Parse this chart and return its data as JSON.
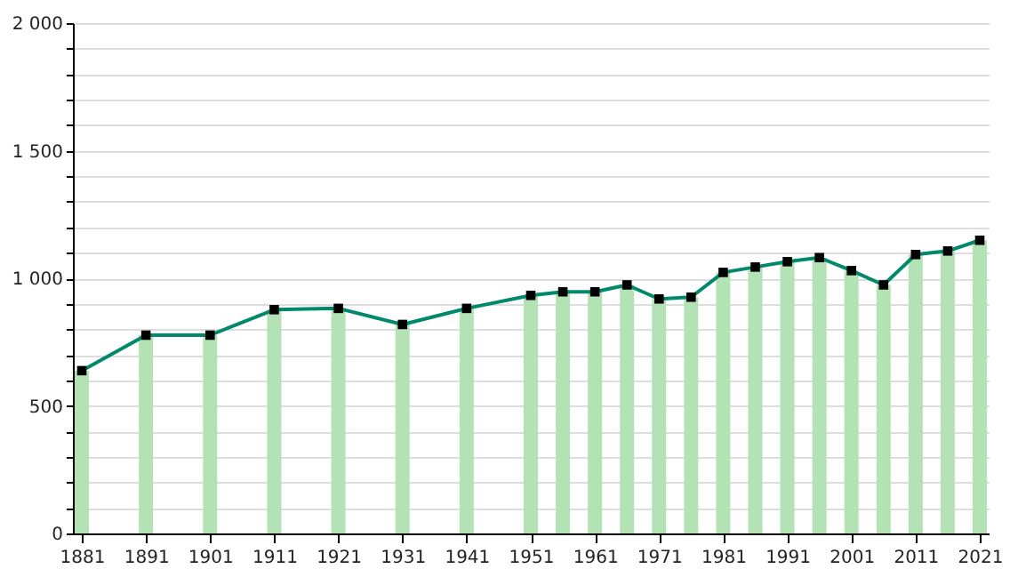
{
  "chart_data": {
    "type": "bar",
    "x": [
      1881,
      1891,
      1901,
      1911,
      1921,
      1931,
      1941,
      1951,
      1956,
      1961,
      1966,
      1971,
      1976,
      1981,
      1986,
      1991,
      1996,
      2001,
      2006,
      2011,
      2016,
      2021
    ],
    "series": [
      {
        "color": "#b3e3b5",
        "values": [
          638,
          777,
          777,
          877,
          882,
          819,
          882,
          933,
          947,
          947,
          974,
          919,
          926,
          1023,
          1044,
          1065,
          1081,
          1030,
          974,
          1093,
          1107,
          1149
        ]
      },
      {
        "type": "line",
        "color": "#00896b",
        "marker": "square",
        "line_style": "solid",
        "values": [
          638,
          777,
          777,
          877,
          882,
          819,
          882,
          933,
          947,
          947,
          974,
          919,
          926,
          1023,
          1044,
          1065,
          1081,
          1030,
          974,
          1093,
          1107,
          1149
        ]
      }
    ],
    "xlim": [
      1881,
      2021
    ],
    "xticks": [
      1881,
      1891,
      1901,
      1911,
      1921,
      1931,
      1941,
      1951,
      1961,
      1971,
      1981,
      1991,
      2001,
      2011,
      2021
    ],
    "ylim": [
      0,
      2000
    ],
    "yticks": [
      0,
      {
        "value": 100,
        "label": null
      },
      {
        "value": 200,
        "label": null
      },
      {
        "value": 300,
        "label": null
      },
      {
        "value": 400,
        "label": null
      },
      500,
      {
        "value": 600,
        "label": null
      },
      {
        "value": 700,
        "label": null
      },
      {
        "value": 800,
        "label": null
      },
      {
        "value": 900,
        "label": null
      },
      {
        "value": 1000,
        "label": "1 000"
      },
      {
        "value": 1100,
        "label": null
      },
      {
        "value": 1200,
        "label": null
      },
      {
        "value": 1300,
        "label": null
      },
      {
        "value": 1400,
        "label": null
      },
      {
        "value": 1500,
        "label": "1 500"
      },
      {
        "value": 1600,
        "label": null
      },
      {
        "value": 1700,
        "label": null
      },
      {
        "value": 1800,
        "label": null
      },
      {
        "value": 1900,
        "label": null
      },
      {
        "value": 2000,
        "label": "2 000"
      }
    ],
    "grid": "y"
  }
}
